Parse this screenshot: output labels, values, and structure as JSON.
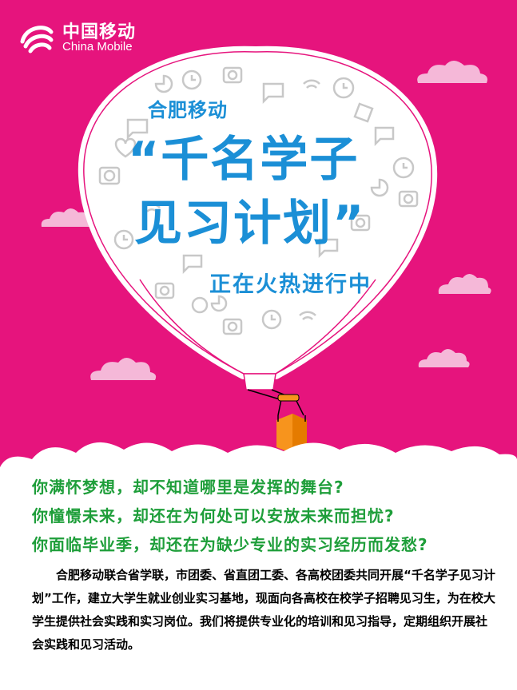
{
  "brand": {
    "name_cn": "中国移动",
    "name_en": "China Mobile"
  },
  "poster": {
    "line1": "合肥移动",
    "line2": "“千名学子",
    "line3": "见习计划”",
    "line4": "正在火热进行中"
  },
  "questions": [
    "你满怀梦想，却不知道哪里是发挥的舞台?",
    "你憧憬未来，却还在为何处可以安放未来而担忧?",
    "你面临毕业季，却还在为缺少专业的实习经历而发愁?"
  ],
  "paragraph": "合肥移动联合省学联，市团委、省直团工委、各高校团委共同开展“千名学子见习计划”工作，建立大学生就业创业实习基地，现面向各高校在校学子招聘见习生，为在校大学生提供社会实践和实习岗位。我们将提供专业化的培训和见习指导，定期组织开展社会实践和见习活动。",
  "colors": {
    "background": "#e6147d",
    "title_blue": "#1b8fd6",
    "question_green": "#1e9e3a",
    "cloud_pink": "#f5b8d8",
    "basket_orange": "#f7941d"
  }
}
